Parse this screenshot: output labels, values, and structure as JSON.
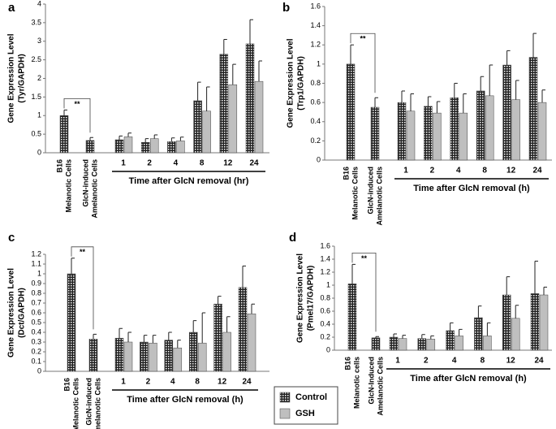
{
  "chart_data": [
    {
      "type": "bar",
      "panel": "a",
      "y_label": [
        "Gene Expression Level",
        "(Tyr/GAPDH)"
      ],
      "x_label": "Time after GlcN removal (hr)",
      "significance": "**",
      "categories": [
        [
          "B16",
          "Melanotic Cells"
        ],
        [
          "GlcN-induced",
          "Amelanotic Cells"
        ],
        "1",
        "2",
        "4",
        "8",
        "12",
        "24"
      ],
      "ylim": [
        0,
        4
      ],
      "yticks": [
        0,
        0.5,
        1,
        1.5,
        2,
        2.5,
        3,
        3.5,
        4
      ],
      "series": [
        {
          "name": "Control",
          "color": "#333333",
          "values": [
            1.0,
            0.33,
            0.35,
            0.28,
            0.3,
            1.4,
            2.65,
            2.93
          ],
          "errors": [
            0.15,
            0.08,
            0.1,
            0.1,
            0.1,
            0.5,
            0.4,
            0.65
          ]
        },
        {
          "name": "GSH",
          "color": "#bfbfbf",
          "values": [
            null,
            null,
            0.43,
            0.38,
            0.32,
            1.12,
            1.83,
            1.92
          ],
          "errors": [
            null,
            null,
            0.1,
            0.1,
            0.1,
            0.65,
            0.55,
            0.55
          ]
        }
      ]
    },
    {
      "type": "bar",
      "panel": "b",
      "y_label": [
        "Gene Expression Level",
        "(Trp1/GAPDH)"
      ],
      "x_label": "Time after GlcN removal (h)",
      "significance": "**",
      "categories": [
        [
          "B16",
          "Melanotic Cells"
        ],
        [
          "GlcN-induced",
          "Amelanotic Cells"
        ],
        "1",
        "2",
        "4",
        "8",
        "12",
        "24"
      ],
      "ylim": [
        0,
        1.6
      ],
      "yticks": [
        0,
        0.2,
        0.4,
        0.6,
        0.8,
        1,
        1.2,
        1.4,
        1.6
      ],
      "series": [
        {
          "name": "Control",
          "color": "#333333",
          "values": [
            1.0,
            0.55,
            0.6,
            0.56,
            0.65,
            0.72,
            0.99,
            1.07
          ],
          "errors": [
            0.2,
            0.1,
            0.12,
            0.1,
            0.15,
            0.15,
            0.15,
            0.25
          ]
        },
        {
          "name": "GSH",
          "color": "#bfbfbf",
          "values": [
            null,
            null,
            0.51,
            0.49,
            0.49,
            0.67,
            0.63,
            0.6
          ],
          "errors": [
            null,
            null,
            0.18,
            0.12,
            0.2,
            0.32,
            0.2,
            0.13
          ]
        }
      ]
    },
    {
      "type": "bar",
      "panel": "c",
      "y_label": [
        "Gene Expression Level",
        "(Dct/GAPDH)"
      ],
      "x_label": "Time after GlcN removal (h)",
      "significance": "**",
      "categories": [
        [
          "B16",
          "Melanotic Cells"
        ],
        [
          "GlcN-induced",
          "Amelanotic Cells"
        ],
        "1",
        "2",
        "4",
        "8",
        "12",
        "24"
      ],
      "ylim": [
        0,
        1.2
      ],
      "yticks": [
        0,
        0.1,
        0.2,
        0.3,
        0.4,
        0.5,
        0.6,
        0.7,
        0.8,
        0.9,
        1,
        1.1,
        1.2
      ],
      "series": [
        {
          "name": "Control",
          "color": "#333333",
          "values": [
            1.0,
            0.33,
            0.34,
            0.3,
            0.32,
            0.4,
            0.69,
            0.86
          ],
          "errors": [
            0.16,
            0.05,
            0.1,
            0.07,
            0.08,
            0.12,
            0.08,
            0.22
          ]
        },
        {
          "name": "GSH",
          "color": "#bfbfbf",
          "values": [
            null,
            null,
            0.3,
            0.29,
            0.24,
            0.29,
            0.4,
            0.59
          ],
          "errors": [
            null,
            null,
            0.1,
            0.08,
            0.08,
            0.31,
            0.16,
            0.1
          ]
        }
      ]
    },
    {
      "type": "bar",
      "panel": "d",
      "y_label": [
        "Gene Expression Level",
        "(Pmel17/GAPDH)"
      ],
      "x_label": "Time after GlcN removal (h)",
      "significance": "**",
      "categories": [
        [
          "B16",
          "Melanotic cells"
        ],
        [
          "GlcN-Induced",
          "Amelanotic Cells"
        ],
        "1",
        "2",
        "4",
        "8",
        "12",
        "24"
      ],
      "ylim": [
        0,
        1.6
      ],
      "yticks": [
        0,
        0.2,
        0.4,
        0.6,
        0.8,
        1,
        1.2,
        1.4,
        1.6
      ],
      "series": [
        {
          "name": "Control",
          "color": "#333333",
          "values": [
            1.02,
            0.19,
            0.2,
            0.18,
            0.3,
            0.5,
            0.85,
            0.87
          ],
          "errors": [
            0.3,
            0.02,
            0.05,
            0.06,
            0.12,
            0.18,
            0.28,
            0.5
          ]
        },
        {
          "name": "GSH",
          "color": "#bfbfbf",
          "values": [
            null,
            null,
            0.18,
            0.17,
            0.22,
            0.22,
            0.49,
            0.85
          ],
          "errors": [
            null,
            null,
            0.05,
            0.05,
            0.1,
            0.2,
            0.2,
            0.12
          ]
        }
      ]
    }
  ]
}
